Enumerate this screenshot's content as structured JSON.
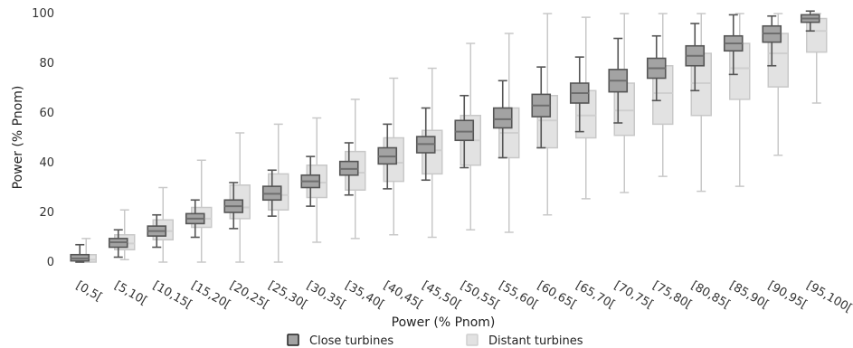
{
  "chart_data": {
    "type": "box",
    "xlabel": "Power (% Pnom)",
    "ylabel": "Power (% Pnom)",
    "ylim": [
      0,
      100
    ],
    "yticks": [
      0,
      20,
      40,
      60,
      80,
      100
    ],
    "grid": false,
    "legend_position": "bottom",
    "categories": [
      "[0,5[",
      "[5,10[",
      "[10,15[",
      "[15,20[",
      "[20,25[",
      "[25,30[",
      "[30,35[",
      "[35,40[",
      "[40,45[",
      "[45,50[",
      "[50,55[",
      "[55,60[",
      "[60,65[",
      "[65,70[",
      "[70,75[",
      "[75,80[",
      "[80,85[",
      "[85,90[",
      "[90,95[",
      "[95,100["
    ],
    "series": [
      {
        "name": "Distant turbines",
        "color_fill": "#e2e2e2",
        "color_line": "#c8c8c8",
        "boxes": [
          {
            "min": 0,
            "q1": 0,
            "median": 1,
            "q3": 3,
            "max": 9.5
          },
          {
            "min": 1,
            "q1": 5,
            "median": 7.5,
            "q3": 11,
            "max": 21
          },
          {
            "min": 0,
            "q1": 9,
            "median": 12.5,
            "q3": 17,
            "max": 30
          },
          {
            "min": 0,
            "q1": 14,
            "median": 17.5,
            "q3": 22,
            "max": 41
          },
          {
            "min": 0,
            "q1": 17.5,
            "median": 22,
            "q3": 31,
            "max": 52
          },
          {
            "min": 0,
            "q1": 21,
            "median": 27,
            "q3": 35.5,
            "max": 55.5
          },
          {
            "min": 8,
            "q1": 26,
            "median": 32,
            "q3": 39,
            "max": 58
          },
          {
            "min": 9.5,
            "q1": 29,
            "median": 36,
            "q3": 44.5,
            "max": 65.5
          },
          {
            "min": 11,
            "q1": 32.5,
            "median": 40,
            "q3": 50,
            "max": 74
          },
          {
            "min": 10,
            "q1": 35.5,
            "median": 45,
            "q3": 53,
            "max": 78
          },
          {
            "min": 13,
            "q1": 39,
            "median": 49,
            "q3": 59,
            "max": 88
          },
          {
            "min": 12,
            "q1": 42,
            "median": 52,
            "q3": 62,
            "max": 92
          },
          {
            "min": 19,
            "q1": 46,
            "median": 57,
            "q3": 67,
            "max": 100
          },
          {
            "min": 25.5,
            "q1": 50,
            "median": 59,
            "q3": 69,
            "max": 98.5
          },
          {
            "min": 28,
            "q1": 51,
            "median": 61,
            "q3": 72,
            "max": 100
          },
          {
            "min": 34.5,
            "q1": 55.5,
            "median": 68,
            "q3": 79,
            "max": 100
          },
          {
            "min": 28.5,
            "q1": 59,
            "median": 72,
            "q3": 84,
            "max": 100
          },
          {
            "min": 30.5,
            "q1": 65.5,
            "median": 78,
            "q3": 88,
            "max": 100
          },
          {
            "min": 43,
            "q1": 70.5,
            "median": 84,
            "q3": 92,
            "max": 100
          },
          {
            "min": 64,
            "q1": 84.5,
            "median": 93,
            "q3": 98,
            "max": 100
          }
        ]
      },
      {
        "name": "Close turbines",
        "color_fill": "#a3a3a3",
        "color_line": "#555555",
        "boxes": [
          {
            "min": 0,
            "q1": 0.5,
            "median": 1.5,
            "q3": 3,
            "max": 7
          },
          {
            "min": 2,
            "q1": 6,
            "median": 8,
            "q3": 9.5,
            "max": 13
          },
          {
            "min": 6,
            "q1": 10.5,
            "median": 12.5,
            "q3": 14.5,
            "max": 19
          },
          {
            "min": 10,
            "q1": 15.5,
            "median": 17.5,
            "q3": 19.5,
            "max": 25
          },
          {
            "min": 13.5,
            "q1": 20,
            "median": 22.5,
            "q3": 25,
            "max": 32
          },
          {
            "min": 18.5,
            "q1": 25,
            "median": 27.5,
            "q3": 30.5,
            "max": 37
          },
          {
            "min": 22.5,
            "q1": 30,
            "median": 32.5,
            "q3": 35,
            "max": 42.5
          },
          {
            "min": 27,
            "q1": 35,
            "median": 37.5,
            "q3": 40.5,
            "max": 48
          },
          {
            "min": 29.5,
            "q1": 39.5,
            "median": 42.5,
            "q3": 46,
            "max": 55.5
          },
          {
            "min": 33,
            "q1": 44,
            "median": 47.5,
            "q3": 50.5,
            "max": 62
          },
          {
            "min": 38,
            "q1": 49,
            "median": 52.5,
            "q3": 57,
            "max": 67
          },
          {
            "min": 42,
            "q1": 54,
            "median": 57.5,
            "q3": 62,
            "max": 73
          },
          {
            "min": 46,
            "q1": 58.5,
            "median": 63,
            "q3": 67.5,
            "max": 78.5
          },
          {
            "min": 52.5,
            "q1": 64,
            "median": 68,
            "q3": 72,
            "max": 82.5
          },
          {
            "min": 56,
            "q1": 68.5,
            "median": 73,
            "q3": 77.5,
            "max": 90
          },
          {
            "min": 65,
            "q1": 74,
            "median": 78,
            "q3": 82,
            "max": 91
          },
          {
            "min": 69,
            "q1": 79,
            "median": 83,
            "q3": 87,
            "max": 96
          },
          {
            "min": 75.5,
            "q1": 85,
            "median": 88,
            "q3": 91,
            "max": 99.5
          },
          {
            "min": 79,
            "q1": 88.5,
            "median": 92,
            "q3": 95,
            "max": 99
          },
          {
            "min": 93,
            "q1": 96.5,
            "median": 98,
            "q3": 99.5,
            "max": 101
          }
        ]
      }
    ]
  }
}
